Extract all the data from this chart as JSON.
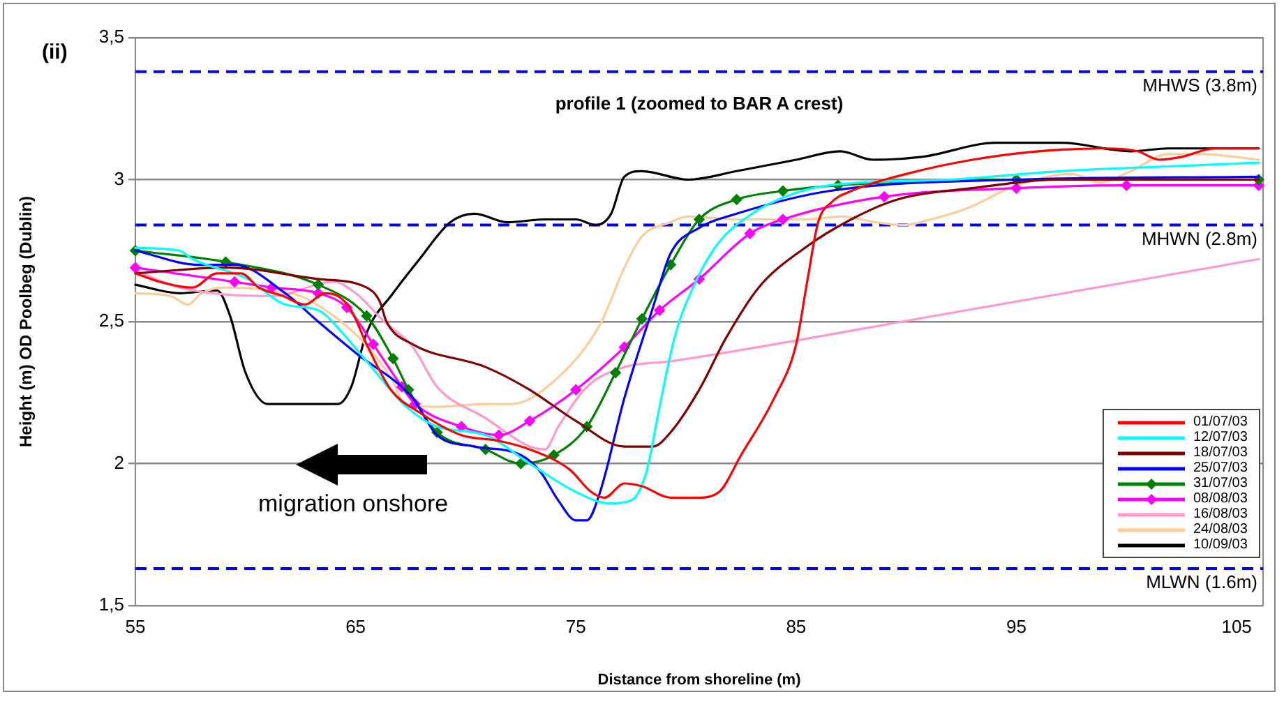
{
  "chart_data": {
    "type": "line",
    "xlabel": "Distance from shoreline (m)",
    "ylabel": "Height (m) OD Poolbeg (Dublin)",
    "annotations": [
      "(ii)",
      "profile 1 (zoomed to BAR A crest)",
      "migration onshore"
    ],
    "xlim": [
      55,
      106.2
    ],
    "xticks": [
      55,
      65,
      75,
      85,
      95,
      105
    ],
    "ylim": [
      1.5,
      3.5
    ],
    "yticks": [
      {
        "value": 1.5,
        "label": "1,5"
      },
      2,
      {
        "value": 2.5,
        "label": "2,5"
      },
      3,
      {
        "value": 3.5,
        "label": "3,5"
      }
    ],
    "grid": "y",
    "legend": "bottom right",
    "marker": "none",
    "line_style": "solid",
    "ref_lines": [
      {
        "axis": "y",
        "value": 3.38,
        "label": "MHWS (3.8m)",
        "color": "#0000ff",
        "line_style": "dashed"
      },
      {
        "axis": "y",
        "value": 2.84,
        "label": "MHWN (2.8m)",
        "color": "#0000ff",
        "line_style": "dashed"
      },
      {
        "axis": "y",
        "value": 1.63,
        "label": "MLWN (1.6m)",
        "color": "#0000ff",
        "line_style": "dashed"
      }
    ],
    "series": [
      {
        "name": "01/07/03",
        "color": "#ff0000",
        "x": [
          55,
          56.1,
          57.6,
          58.7,
          59.8,
          60.6,
          61.7,
          62.7,
          63.6,
          64.2,
          64.8,
          65.5,
          66.6,
          67.9,
          69.8,
          71.5,
          72.9,
          74.7,
          75.7,
          76.3,
          77.2,
          78,
          79.3,
          80.5,
          81.5,
          82.5,
          84,
          85,
          85.5,
          86,
          86.6,
          87.5,
          90,
          93,
          96,
          99,
          100.5,
          101.5,
          102.5,
          104,
          106
        ],
        "values": [
          2.67,
          2.64,
          2.62,
          2.67,
          2.67,
          2.62,
          2.59,
          2.56,
          2.6,
          2.59,
          2.54,
          2.42,
          2.26,
          2.18,
          2.1,
          2.08,
          2.05,
          1.98,
          1.9,
          1.88,
          1.93,
          1.92,
          1.88,
          1.88,
          1.9,
          2.03,
          2.23,
          2.42,
          2.64,
          2.85,
          2.92,
          2.96,
          3.02,
          3.07,
          3.1,
          3.11,
          3.1,
          3.07,
          3.08,
          3.11,
          3.11
        ]
      },
      {
        "name": "12/07/03",
        "color": "#00ffff",
        "x": [
          55,
          57,
          57.6,
          60.1,
          61.8,
          63.3,
          64.4,
          65.5,
          67.3,
          68.7,
          70.9,
          72.9,
          75,
          76.5,
          77.5,
          78.2,
          78.8,
          79.5,
          80.5,
          81.5,
          83,
          84.5,
          86.5,
          92,
          97,
          103,
          106
        ],
        "values": [
          2.76,
          2.75,
          2.72,
          2.65,
          2.56,
          2.54,
          2.46,
          2.36,
          2.2,
          2.13,
          2.1,
          2,
          1.9,
          1.86,
          1.87,
          1.97,
          2.2,
          2.45,
          2.65,
          2.78,
          2.88,
          2.94,
          2.98,
          3,
          3.03,
          3.05,
          3.06
        ]
      },
      {
        "name": "18/07/03",
        "color": "#800000",
        "x": [
          55,
          59.1,
          63.3,
          65.5,
          66.1,
          66.4,
          67.6,
          70.9,
          72.9,
          75,
          77.2,
          78.5,
          79.3,
          80.6,
          81.8,
          83.3,
          85.4,
          87.5,
          89.6,
          93,
          97,
          106
        ],
        "values": [
          2.67,
          2.69,
          2.65,
          2.62,
          2.57,
          2.5,
          2.42,
          2.34,
          2.26,
          2.15,
          2.06,
          2.06,
          2.11,
          2.26,
          2.44,
          2.62,
          2.76,
          2.86,
          2.93,
          2.97,
          3,
          3
        ]
      },
      {
        "name": "25/07/03",
        "color": "#0000ff",
        "x": [
          55,
          57.9,
          59.5,
          61.8,
          63.3,
          65,
          67.6,
          68.7,
          70.4,
          72.5,
          73.4,
          74.2,
          75,
          75.5,
          76.1,
          77.2,
          78.5,
          79.3,
          80.6,
          82.3,
          86.5,
          95,
          106
        ],
        "values": [
          2.75,
          2.7,
          2.7,
          2.6,
          2.5,
          2.39,
          2.23,
          2.1,
          2.06,
          2.03,
          1.97,
          1.87,
          1.8,
          1.8,
          1.9,
          2.23,
          2.55,
          2.74,
          2.83,
          2.88,
          2.96,
          3,
          3.01
        ]
      },
      {
        "name": "31/07/03",
        "color": "#008000",
        "marker": "diamond",
        "x": [
          55,
          59.1,
          63.3,
          65.5,
          66.7,
          67.4,
          68.7,
          70.9,
          72.5,
          74,
          75.5,
          76.8,
          78,
          79.3,
          80.6,
          82.3,
          84.4,
          86.9,
          95,
          106
        ],
        "values": [
          2.75,
          2.71,
          2.63,
          2.52,
          2.37,
          2.26,
          2.11,
          2.05,
          2,
          2.03,
          2.13,
          2.32,
          2.51,
          2.7,
          2.86,
          2.93,
          2.96,
          2.98,
          3,
          3
        ]
      },
      {
        "name": "08/08/03",
        "color": "#ff00ff",
        "marker": "diamond",
        "x": [
          55,
          59.5,
          61.2,
          63.3,
          64.6,
          65.8,
          67.1,
          67.7,
          69.8,
          71.5,
          72.9,
          75,
          77.2,
          78.8,
          80.6,
          82.9,
          84.4,
          89,
          95,
          100,
          106
        ],
        "values": [
          2.69,
          2.64,
          2.62,
          2.6,
          2.55,
          2.42,
          2.27,
          2.21,
          2.13,
          2.1,
          2.15,
          2.26,
          2.41,
          2.54,
          2.65,
          2.81,
          2.86,
          2.94,
          2.97,
          2.98,
          2.98
        ]
      },
      {
        "name": "16/08/03",
        "color": "#ff99cc",
        "x": [
          55,
          57,
          61.2,
          64,
          65,
          66.3,
          67.6,
          68.7,
          70.9,
          72.9,
          73.6,
          74.2,
          75.5,
          77.2,
          79.3,
          92,
          106
        ],
        "values": [
          2.68,
          2.62,
          2.59,
          2.64,
          2.6,
          2.5,
          2.41,
          2.27,
          2.16,
          2.06,
          2.05,
          2.13,
          2.27,
          2.34,
          2.36,
          2.53,
          2.72
        ]
      },
      {
        "name": "24/08/03",
        "color": "#ffcc99",
        "x": [
          55,
          56.6,
          57.4,
          58,
          59.1,
          61.2,
          62.5,
          64,
          65.2,
          66.7,
          67.2,
          68.7,
          70.9,
          72.1,
          74,
          76.1,
          77.2,
          78,
          79.3,
          80.1,
          82.3,
          85.4,
          87.1,
          88.6,
          89.9,
          91.1,
          92.8,
          95,
          97.5,
          98.8,
          100.2,
          101.9,
          103.4,
          106
        ],
        "values": [
          2.6,
          2.59,
          2.56,
          2.6,
          2.62,
          2.61,
          2.59,
          2.52,
          2.44,
          2.29,
          2.21,
          2.2,
          2.21,
          2.21,
          2.29,
          2.49,
          2.69,
          2.8,
          2.85,
          2.87,
          2.86,
          2.86,
          2.87,
          2.85,
          2.84,
          2.86,
          2.9,
          2.98,
          3.02,
          2.99,
          3.03,
          3.09,
          3.09,
          3.07
        ]
      },
      {
        "name": "10/09/03",
        "color": "#000000",
        "x": [
          55,
          57,
          58.7,
          59.3,
          60,
          61,
          62.3,
          64.2,
          64.8,
          65.5,
          66.7,
          67.9,
          69.3,
          70.4,
          71.9,
          73.6,
          75,
          75.9,
          76.6,
          77.2,
          78,
          80.1,
          82.3,
          85,
          87,
          88.5,
          90.7,
          94.1,
          97,
          100.2,
          101.9,
          106
        ],
        "values": [
          2.63,
          2.6,
          2.61,
          2.52,
          2.32,
          2.21,
          2.21,
          2.21,
          2.27,
          2.46,
          2.6,
          2.72,
          2.85,
          2.88,
          2.85,
          2.86,
          2.86,
          2.84,
          2.88,
          3.01,
          3.03,
          3,
          3.03,
          3.07,
          3.1,
          3.07,
          3.08,
          3.13,
          3.13,
          3.1,
          3.11,
          3.11
        ]
      }
    ]
  }
}
